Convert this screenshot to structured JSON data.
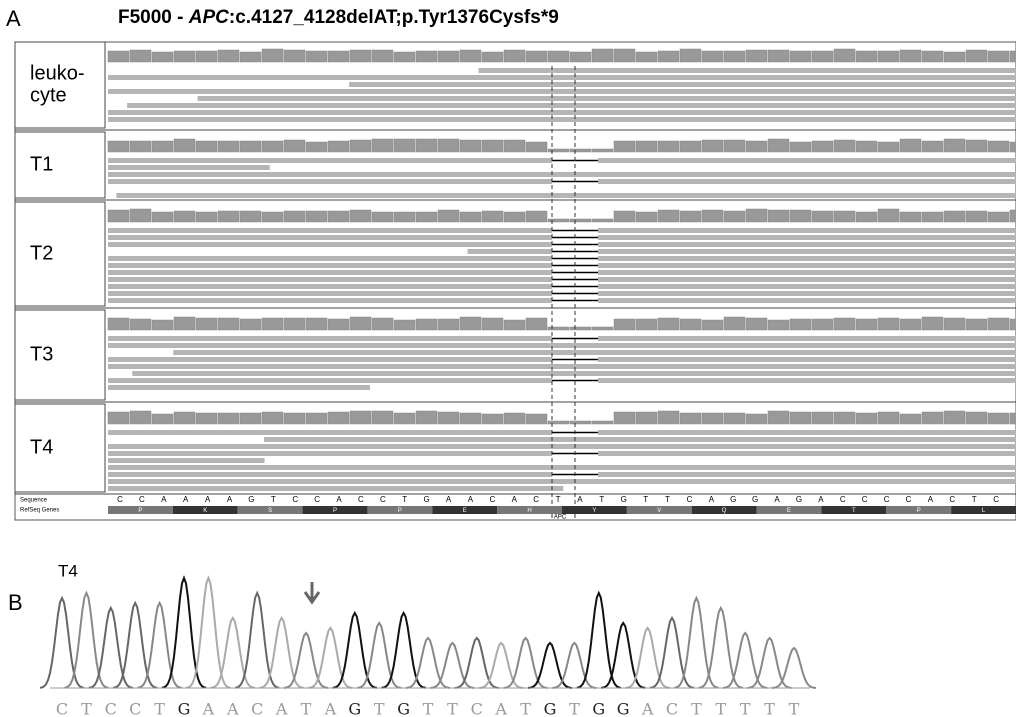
{
  "panel_a": {
    "label": "A",
    "title": {
      "prefix": "F5000 - ",
      "gene": "APC",
      "suffix": ":c.4127_4128delAT;p.Tyr1376Cysfs*9"
    },
    "tracks": [
      {
        "label": [
          "leuko-",
          "cyte"
        ]
      },
      {
        "label": [
          "T1"
        ]
      },
      {
        "label": [
          "T2"
        ]
      },
      {
        "label": [
          "T3"
        ]
      },
      {
        "label": [
          "T4"
        ]
      }
    ],
    "sequence_label": "Sequence",
    "genes_label": "RefSeq Genes",
    "gene_name": "APC",
    "sequence": [
      "C",
      "C",
      "A",
      "A",
      "A",
      "A",
      "G",
      "T",
      "C",
      "C",
      "A",
      "C",
      "C",
      "T",
      "G",
      "A",
      "A",
      "C",
      "A",
      "C",
      "T",
      "A",
      "T",
      "G",
      "T",
      "T",
      "C",
      "A",
      "G",
      "G",
      "A",
      "G",
      "A",
      "C",
      "C",
      "C",
      "C",
      "A",
      "C",
      "T",
      "C"
    ],
    "amino_acids": [
      "P",
      "K",
      "S",
      "P",
      "P",
      "E",
      "H",
      "Y",
      "V",
      "Q",
      "E",
      "T",
      "P",
      "L"
    ]
  },
  "panel_b": {
    "label": "B",
    "sample": "T4",
    "bases": [
      "C",
      "T",
      "C",
      "C",
      "T",
      "G",
      "A",
      "A",
      "C",
      "A",
      "T",
      "A",
      "G",
      "T",
      "G",
      "T",
      "T",
      "C",
      "A",
      "T",
      "G",
      "T",
      "G",
      "G",
      "A",
      "C",
      "T",
      "T",
      "T",
      "T",
      "T"
    ]
  }
}
